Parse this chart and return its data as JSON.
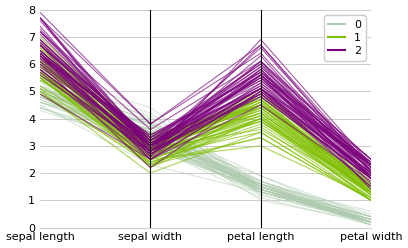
{
  "columns": [
    "sepal length",
    "sepal width",
    "petal length",
    "petal width"
  ],
  "class_colors": [
    "#b0ccb0",
    "#7fbf00",
    "#7b007b"
  ],
  "class_labels": [
    "0",
    "1",
    "2"
  ],
  "class_alphas": [
    0.55,
    0.65,
    0.65
  ],
  "class_linewidths": [
    0.7,
    0.8,
    0.8
  ],
  "ylim": [
    0,
    8
  ],
  "yticks": [
    0,
    1,
    2,
    3,
    4,
    5,
    6,
    7,
    8
  ],
  "background_color": "#ffffff",
  "grid_color": "#cccccc",
  "figsize": [
    4.08,
    2.48
  ],
  "dpi": 100,
  "legend_fontsize": 8,
  "axis_label_fontsize": 8,
  "vline_positions": [
    1,
    2
  ]
}
